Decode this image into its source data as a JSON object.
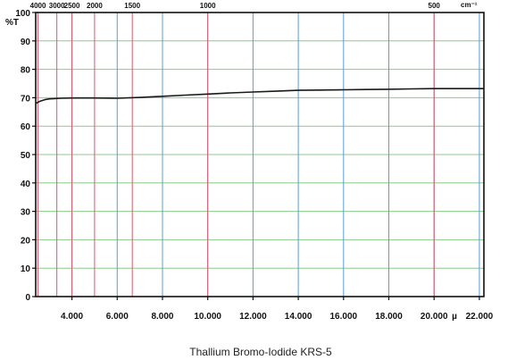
{
  "chart_data": {
    "type": "line",
    "title": "Thallium Bromo-Iodide KRS-5",
    "ylabel": "%T",
    "xunit": "µ",
    "topunit": "cm⁻¹",
    "xlim": [
      2.4,
      22.2
    ],
    "ylim": [
      0,
      100
    ],
    "yticks": [
      0,
      10,
      20,
      30,
      40,
      50,
      60,
      70,
      80,
      90,
      100
    ],
    "ytick_labels": [
      "0",
      "10",
      "20",
      "30",
      "40",
      "50",
      "60",
      "70",
      "80",
      "90",
      "100"
    ],
    "xticks": [
      4,
      6,
      8,
      10,
      12,
      14,
      16,
      18,
      20,
      22
    ],
    "xtick_labels": [
      "4.000",
      "6.000",
      "8.000",
      "10.000",
      "12.000",
      "14.000",
      "16.000",
      "18.000",
      "20.000",
      "22.000"
    ],
    "wavenumber_ticks": [
      4000,
      3000,
      2500,
      2000,
      1500,
      1000,
      500
    ],
    "wavenumber_labels": [
      "4000",
      "3000",
      "2500",
      "2000",
      "1500",
      "1000",
      "500"
    ],
    "grid": true,
    "colors": {
      "line": "#1a1a1a",
      "grid_horizontal": "#8cc98c",
      "grid_micron": "#5b9bd5",
      "grid_wavenumber": "#e0566b",
      "axis": "#111111"
    },
    "series": [
      {
        "x": [
          2.4,
          2.6,
          2.8,
          3.0,
          3.2,
          3.5,
          4.0,
          5.0,
          6.0,
          7.0,
          8.0,
          9.0,
          10.0,
          11.0,
          12.0,
          13.0,
          14.0,
          15.0,
          16.0,
          17.0,
          18.0,
          19.0,
          20.0,
          21.0,
          22.2
        ],
        "y": [
          68.0,
          68.8,
          69.3,
          69.6,
          69.7,
          69.8,
          69.9,
          69.9,
          69.8,
          70.1,
          70.5,
          70.9,
          71.3,
          71.7,
          72.0,
          72.3,
          72.6,
          72.7,
          72.8,
          72.9,
          73.0,
          73.1,
          73.2,
          73.2,
          73.2
        ]
      }
    ]
  }
}
